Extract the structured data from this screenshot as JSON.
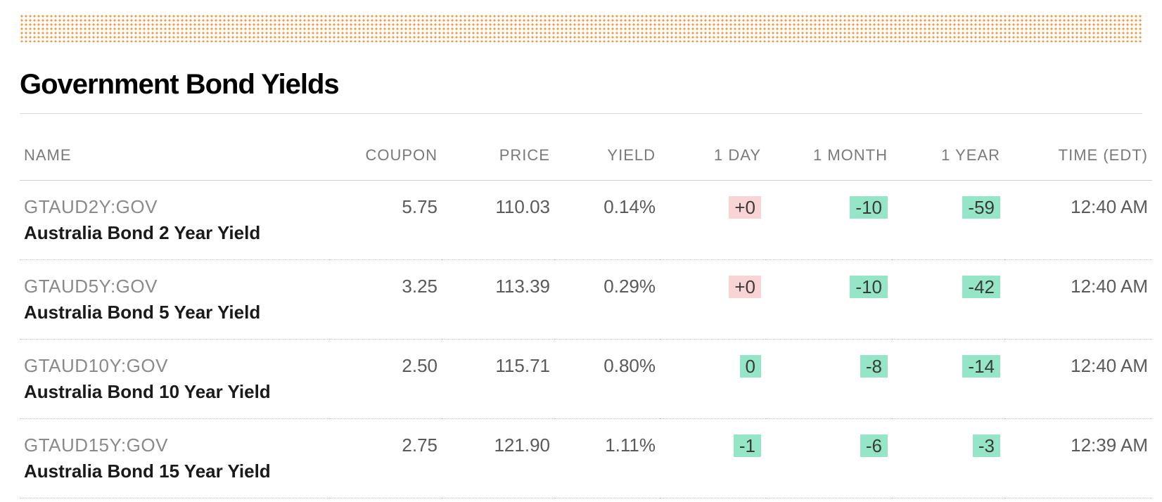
{
  "title": "Government Bond Yields",
  "colors": {
    "positive_bg": "#f9d4d4",
    "negative_bg": "#94e6c6",
    "header_text": "#7a7a7a",
    "ticker_text": "#8a8a8a",
    "desc_text": "#1a1a1a",
    "cell_text": "#5a5a5a",
    "dotted_border": "#bfbfbf",
    "solid_border": "#cfcfcf",
    "top_pattern": "#f29b40"
  },
  "columns": [
    {
      "key": "name",
      "label": "NAME",
      "align": "left"
    },
    {
      "key": "coupon",
      "label": "COUPON",
      "align": "right"
    },
    {
      "key": "price",
      "label": "PRICE",
      "align": "right"
    },
    {
      "key": "yield",
      "label": "YIELD",
      "align": "right"
    },
    {
      "key": "d1",
      "label": "1 DAY",
      "align": "right"
    },
    {
      "key": "m1",
      "label": "1 MONTH",
      "align": "right"
    },
    {
      "key": "y1",
      "label": "1 YEAR",
      "align": "right"
    },
    {
      "key": "time",
      "label": "TIME (EDT)",
      "align": "right"
    }
  ],
  "rows": [
    {
      "ticker": "GTAUD2Y:GOV",
      "desc": "Australia Bond 2 Year Yield",
      "coupon": "5.75",
      "price": "110.03",
      "yield": "0.14%",
      "d1": {
        "text": "+0",
        "dir": "pos"
      },
      "m1": {
        "text": "-10",
        "dir": "neg"
      },
      "y1": {
        "text": "-59",
        "dir": "neg"
      },
      "time": "12:40 AM"
    },
    {
      "ticker": "GTAUD5Y:GOV",
      "desc": "Australia Bond 5 Year Yield",
      "coupon": "3.25",
      "price": "113.39",
      "yield": "0.29%",
      "d1": {
        "text": "+0",
        "dir": "pos"
      },
      "m1": {
        "text": "-10",
        "dir": "neg"
      },
      "y1": {
        "text": "-42",
        "dir": "neg"
      },
      "time": "12:40 AM"
    },
    {
      "ticker": "GTAUD10Y:GOV",
      "desc": "Australia Bond 10 Year Yield",
      "coupon": "2.50",
      "price": "115.71",
      "yield": "0.80%",
      "d1": {
        "text": "0",
        "dir": "neg"
      },
      "m1": {
        "text": "-8",
        "dir": "neg"
      },
      "y1": {
        "text": "-14",
        "dir": "neg"
      },
      "time": "12:40 AM"
    },
    {
      "ticker": "GTAUD15Y:GOV",
      "desc": "Australia Bond 15 Year Yield",
      "coupon": "2.75",
      "price": "121.90",
      "yield": "1.11%",
      "d1": {
        "text": "-1",
        "dir": "neg"
      },
      "m1": {
        "text": "-6",
        "dir": "neg"
      },
      "y1": {
        "text": "-3",
        "dir": "neg"
      },
      "time": "12:39 AM"
    }
  ]
}
